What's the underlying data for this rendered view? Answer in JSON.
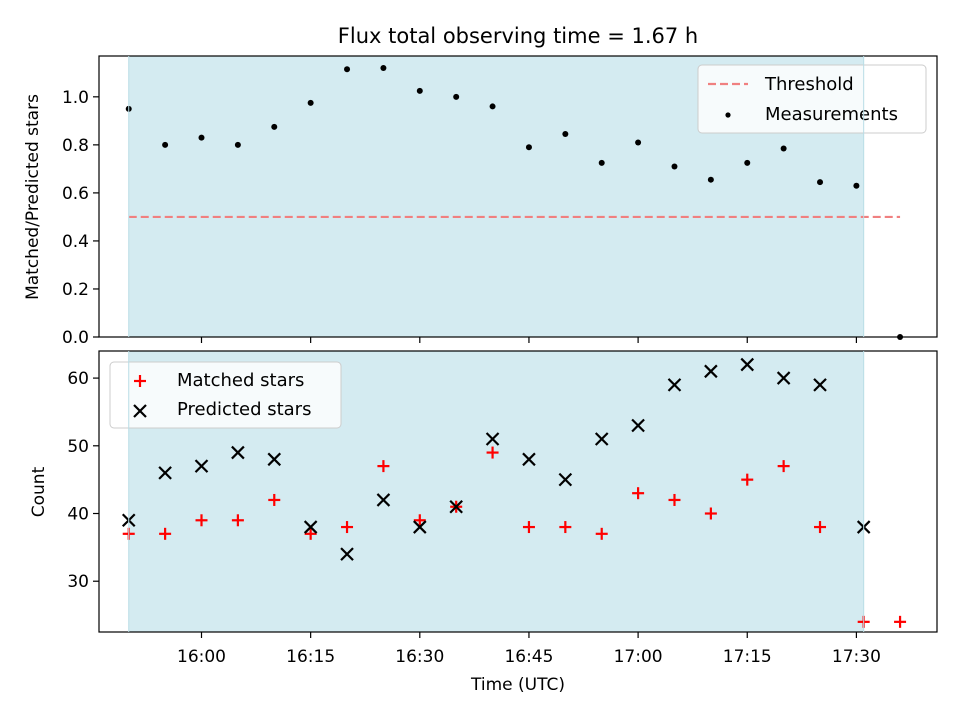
{
  "chart_data": [
    {
      "type": "scatter",
      "title": "Flux total observing time = 1.67 h",
      "ylabel": "Matched/Predicted stars",
      "xlabel": "",
      "ylim": [
        0,
        1.17
      ],
      "yticks": [
        "0.0",
        "0.2",
        "0.4",
        "0.6",
        "0.8",
        "1.0"
      ],
      "x_times": [
        "15:55",
        "16:00",
        "16:05",
        "16:10",
        "16:15",
        "16:20",
        "16:25",
        "16:30",
        "16:35",
        "16:40",
        "16:45",
        "16:50",
        "16:55",
        "17:00",
        "17:05",
        "17:10",
        "17:15",
        "17:20",
        "17:25",
        "17:30",
        "17:35"
      ],
      "threshold": {
        "name": "Threshold",
        "value": 0.5,
        "color": "#f08080",
        "x_start": "15:50",
        "x_end": "17:36"
      },
      "series": [
        {
          "name": "Measurements",
          "color": "#000000",
          "x": [
            "15:50",
            "15:55",
            "16:00",
            "16:05",
            "16:10",
            "16:15",
            "16:20",
            "16:25",
            "16:30",
            "16:35",
            "16:40",
            "16:45",
            "16:50",
            "16:55",
            "17:00",
            "17:05",
            "17:10",
            "17:15",
            "17:20",
            "17:25",
            "17:30",
            "17:36"
          ],
          "values": [
            0.95,
            0.8,
            0.83,
            0.8,
            0.875,
            0.975,
            1.115,
            1.12,
            1.025,
            1.0,
            0.96,
            0.79,
            0.845,
            0.725,
            0.81,
            0.71,
            0.655,
            0.725,
            0.785,
            0.645,
            0.63,
            0.0
          ]
        }
      ],
      "shaded_region": {
        "x_start": "15:50",
        "x_end": "17:31",
        "color": "#d4ebf1"
      },
      "legend_position": "upper right",
      "grid": false
    },
    {
      "type": "scatter",
      "title": "",
      "ylabel": "Count",
      "xlabel": "Time (UTC)",
      "ylim": [
        22.5,
        64
      ],
      "yticks": [
        "30",
        "40",
        "50",
        "60"
      ],
      "xticks": [
        "16:00",
        "16:15",
        "16:30",
        "16:45",
        "17:00",
        "17:15",
        "17:30"
      ],
      "series": [
        {
          "name": "Matched stars",
          "color": "#ff0000",
          "marker": "+",
          "x": [
            "15:50",
            "15:55",
            "16:00",
            "16:05",
            "16:10",
            "16:15",
            "16:20",
            "16:25",
            "16:30",
            "16:35",
            "16:40",
            "16:45",
            "16:50",
            "16:55",
            "17:00",
            "17:05",
            "17:10",
            "17:15",
            "17:20",
            "17:25",
            "17:31",
            "17:36"
          ],
          "values": [
            37,
            37,
            39,
            39,
            42,
            37,
            38,
            47,
            39,
            41,
            49,
            38,
            38,
            37,
            43,
            42,
            40,
            45,
            47,
            38,
            24,
            24
          ]
        },
        {
          "name": "Predicted stars",
          "color": "#000000",
          "marker": "x",
          "x": [
            "15:50",
            "15:55",
            "16:00",
            "16:05",
            "16:10",
            "16:15",
            "16:20",
            "16:25",
            "16:30",
            "16:35",
            "16:40",
            "16:45",
            "16:50",
            "16:55",
            "17:00",
            "17:05",
            "17:10",
            "17:15",
            "17:20",
            "17:25",
            "17:31"
          ],
          "values": [
            39,
            46,
            47,
            49,
            48,
            38,
            34,
            42,
            38,
            41,
            51,
            48,
            45,
            51,
            53,
            59,
            61,
            62,
            60,
            59,
            38
          ]
        }
      ],
      "shaded_region": {
        "x_start": "15:50",
        "x_end": "17:31",
        "color": "#d4ebf1"
      },
      "legend_position": "upper left",
      "grid": false
    }
  ]
}
